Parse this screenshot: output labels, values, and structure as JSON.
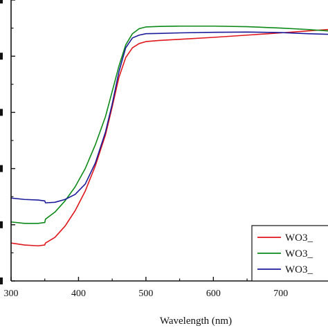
{
  "chart_data": {
    "type": "line",
    "title": "",
    "xlabel": "Wavelength (nm)",
    "ylabel": "",
    "xlim": [
      300,
      770
    ],
    "ylim": [
      0,
      100
    ],
    "x_ticks": [
      300,
      400,
      500,
      600,
      700
    ],
    "x_tick_labels": [
      "300",
      "400",
      "500",
      "600",
      "700"
    ],
    "y_ticks": [
      0,
      20,
      40,
      60,
      80,
      100
    ],
    "y_tick_labels": [
      "",
      "",
      "",
      "",
      "",
      ""
    ],
    "grid": false,
    "legend_position": "bottom-right",
    "series": [
      {
        "name": "WO3_",
        "color": "#e0161b",
        "x": [
          300,
          320,
          340,
          350,
          351,
          365,
          380,
          395,
          410,
          425,
          440,
          450,
          460,
          470,
          480,
          490,
          500,
          520,
          550,
          600,
          650,
          700,
          740,
          770
        ],
        "y": [
          13.5,
          12.8,
          12.5,
          12.8,
          13.5,
          15.5,
          19.5,
          25.0,
          32.0,
          41.0,
          52.0,
          62.0,
          72.5,
          79.5,
          83.0,
          84.5,
          85.2,
          85.6,
          86.0,
          86.7,
          87.5,
          88.3,
          89.0,
          89.5
        ]
      },
      {
        "name": "WO3_",
        "color": "#0b8a17",
        "x": [
          300,
          320,
          340,
          350,
          351,
          365,
          380,
          395,
          410,
          425,
          440,
          450,
          460,
          470,
          480,
          490,
          500,
          520,
          550,
          600,
          650,
          700,
          740,
          770
        ],
        "y": [
          21.0,
          20.5,
          20.5,
          20.8,
          22.0,
          24.5,
          28.5,
          33.5,
          40.0,
          48.5,
          58.5,
          67.5,
          76.5,
          84.0,
          88.0,
          89.8,
          90.4,
          90.6,
          90.7,
          90.7,
          90.5,
          90.0,
          89.5,
          89.0
        ]
      },
      {
        "name": "WO3_",
        "color": "#1a1a9a",
        "x": [
          300,
          320,
          340,
          350,
          351,
          365,
          380,
          395,
          410,
          425,
          440,
          450,
          460,
          470,
          480,
          490,
          500,
          520,
          550,
          600,
          650,
          700,
          740,
          770
        ],
        "y": [
          29.5,
          29.0,
          28.8,
          28.5,
          27.8,
          28.0,
          29.0,
          30.8,
          34.5,
          42.0,
          53.0,
          63.0,
          74.5,
          83.0,
          86.5,
          87.5,
          88.0,
          88.1,
          88.3,
          88.5,
          88.6,
          88.4,
          88.0,
          87.8
        ]
      }
    ]
  }
}
